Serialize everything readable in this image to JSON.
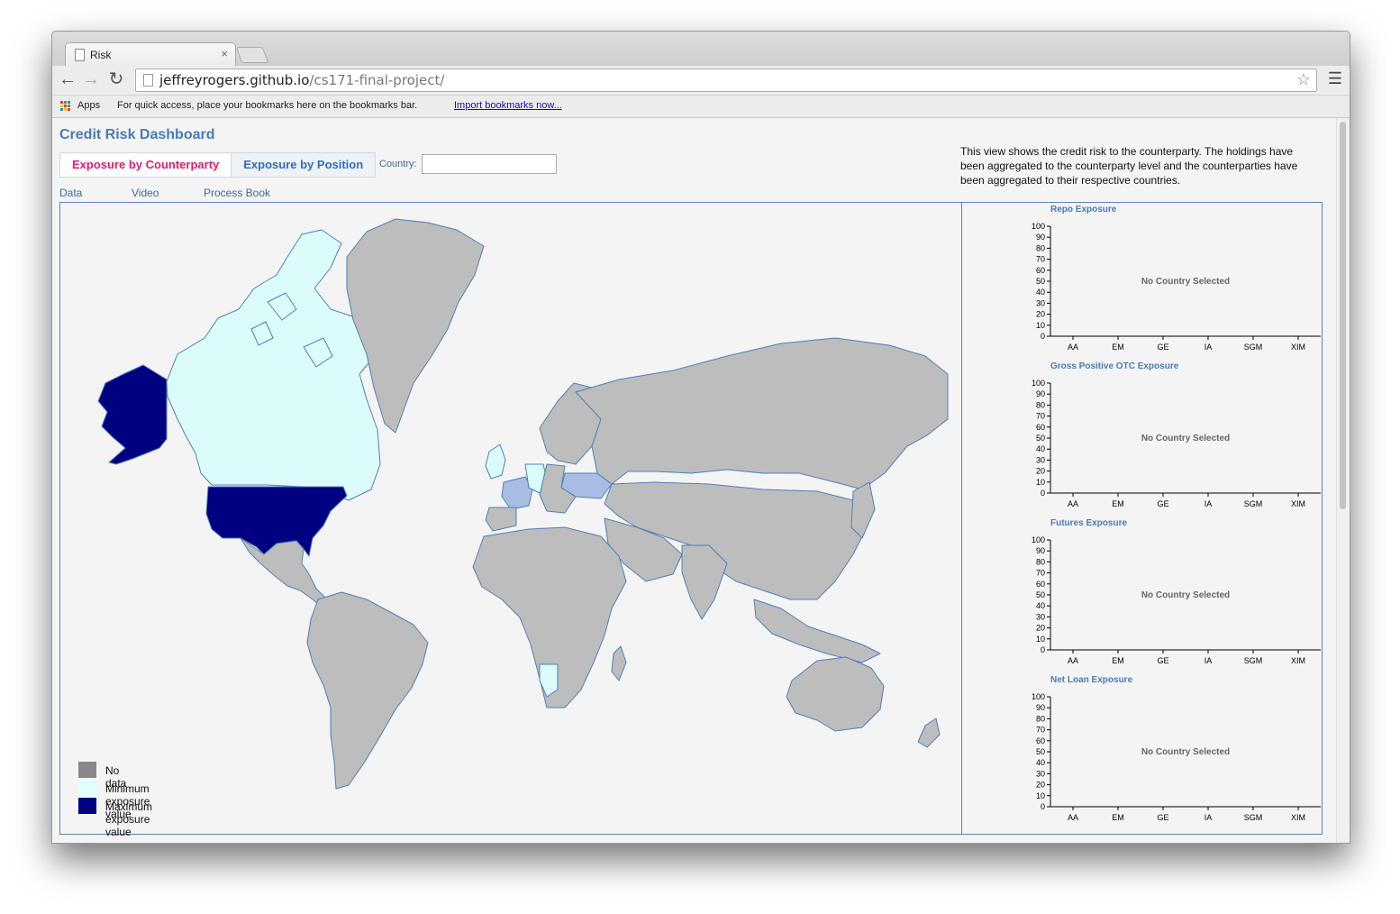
{
  "browser": {
    "tab_title": "Risk",
    "tab_close": "×",
    "url_host": "jeffreyrogers.github.io",
    "url_path": "/cs171-final-project/",
    "bookmarks": {
      "apps": "Apps",
      "hint": "For quick access, place your bookmarks here on the bookmarks bar.",
      "import_link": "Import bookmarks now..."
    }
  },
  "header": {
    "title": "Credit Risk Dashboard",
    "tabs": [
      "Exposure by Counterparty",
      "Exposure by Position"
    ],
    "country_label": "Country:",
    "country_value": "",
    "links": [
      "Data",
      "Video",
      "Process Book"
    ],
    "description": "This view shows the credit risk to the counterparty. The holdings have been aggregated to the counterparty level and the counterparties have been aggregated to their respective countries."
  },
  "map": {
    "legend": [
      {
        "label": "No data",
        "color": "#888888"
      },
      {
        "label": "Minimum exposure value",
        "color": "#e0ffff"
      },
      {
        "label": "Maximum exposure value",
        "color": "#000080"
      }
    ],
    "colors": {
      "land": "#bdbdbd",
      "border": "#4f7fb8",
      "min": "#dcfcfc",
      "mid": "#a9bce3",
      "max": "#000080"
    }
  },
  "charts": {
    "empty_message": "No Country Selected",
    "y_ticks": [
      "0",
      "10",
      "20",
      "30",
      "40",
      "50",
      "60",
      "70",
      "80",
      "90",
      "100"
    ],
    "categories": [
      "AA",
      "EM",
      "GE",
      "IA",
      "SGM",
      "XIM"
    ],
    "panels": [
      {
        "title": "Repo Exposure"
      },
      {
        "title": "Gross Positive OTC Exposure"
      },
      {
        "title": "Futures Exposure"
      },
      {
        "title": "Net Loan Exposure"
      }
    ]
  }
}
